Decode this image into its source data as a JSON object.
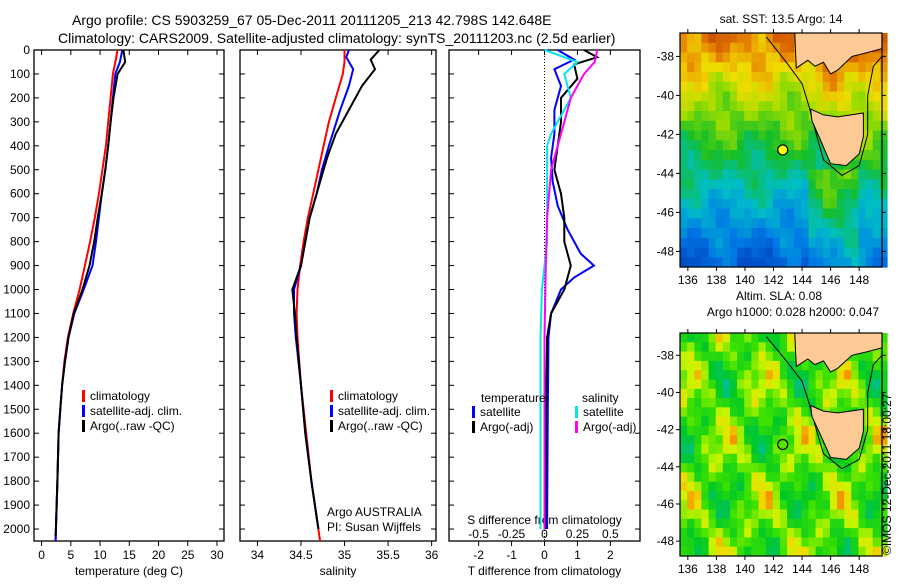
{
  "title_line1": "Argo profile: CS 5903259_67 05-Dec-2011 20111205_213 42.798S 142.648E",
  "title_line2": "Climatology: CARS2009. Satellite-adjusted climatology: synTS_20111203.nc (2.5d earlier)",
  "colors": {
    "climatology": "#ff0000",
    "satellite": "#0000ff",
    "argo": "#000000",
    "sal_satellite": "#00e5ee",
    "sal_argo": "#ff00ff"
  },
  "chart_data": [
    {
      "type": "line",
      "xlabel": "temperature (deg C)",
      "ylabel": "",
      "xlim": [
        -1.3,
        31.2
      ],
      "ylim": [
        2050,
        0
      ],
      "xticks": [
        0,
        5,
        10,
        15,
        20,
        25,
        30
      ],
      "yticks": [
        0,
        100,
        200,
        300,
        400,
        500,
        600,
        700,
        800,
        900,
        1000,
        1100,
        1200,
        1300,
        1400,
        1500,
        1600,
        1700,
        1800,
        1900,
        2000
      ],
      "legend": [
        "climatology",
        "satellite-adj. clim.",
        "Argo(..raw -QC)"
      ],
      "series": [
        {
          "name": "climatology",
          "color": "#ff0000",
          "points": [
            [
              0,
              13
            ],
            [
              50,
              12.6
            ],
            [
              100,
              12.2
            ],
            [
              200,
              11.8
            ],
            [
              300,
              11.4
            ],
            [
              400,
              11
            ],
            [
              500,
              10.4
            ],
            [
              600,
              9.8
            ],
            [
              700,
              9.1
            ],
            [
              800,
              8.3
            ],
            [
              900,
              7.4
            ],
            [
              1000,
              6.5
            ],
            [
              1100,
              5.4
            ],
            [
              1200,
              4.5
            ],
            [
              1300,
              3.9
            ],
            [
              1400,
              3.5
            ],
            [
              1500,
              3.2
            ],
            [
              1600,
              2.9
            ],
            [
              1800,
              2.7
            ],
            [
              2050,
              2.4
            ]
          ]
        },
        {
          "name": "satellite-adj. clim.",
          "color": "#0000ff",
          "points": [
            [
              0,
              13.8
            ],
            [
              50,
              13.4
            ],
            [
              100,
              12.6
            ],
            [
              200,
              12.2
            ],
            [
              300,
              11.8
            ],
            [
              400,
              11.4
            ],
            [
              500,
              10.9
            ],
            [
              600,
              10.3
            ],
            [
              700,
              9.8
            ],
            [
              800,
              9.3
            ],
            [
              900,
              8.7
            ],
            [
              1000,
              7.2
            ],
            [
              1100,
              5.6
            ],
            [
              1200,
              4.6
            ],
            [
              1300,
              4
            ],
            [
              1400,
              3.5
            ],
            [
              1500,
              3.2
            ],
            [
              1600,
              2.9
            ],
            [
              1800,
              2.7
            ],
            [
              2050,
              2.4
            ]
          ]
        },
        {
          "name": "Argo(..raw -QC)",
          "color": "#000000",
          "points": [
            [
              0,
              14
            ],
            [
              50,
              14.3
            ],
            [
              100,
              13
            ],
            [
              200,
              12.3
            ],
            [
              300,
              11.8
            ],
            [
              400,
              11.4
            ],
            [
              500,
              10.9
            ],
            [
              600,
              10.3
            ],
            [
              700,
              9.6
            ],
            [
              800,
              9
            ],
            [
              900,
              8.2
            ],
            [
              1000,
              7
            ],
            [
              1100,
              5.5
            ],
            [
              1200,
              4.6
            ],
            [
              1300,
              4
            ],
            [
              1400,
              3.5
            ],
            [
              1500,
              3.2
            ],
            [
              1600,
              2.9
            ],
            [
              1800,
              2.7
            ],
            [
              2030,
              2.4
            ]
          ]
        }
      ]
    },
    {
      "type": "line",
      "xlabel": "salinity",
      "ylabel": "",
      "xlim": [
        33.8,
        36.05
      ],
      "ylim": [
        2050,
        0
      ],
      "xticks": [
        34,
        34.5,
        35,
        35.5,
        36
      ],
      "legend": [
        "climatology",
        "satellite-adj. clim.",
        "Argo(..raw -QC)"
      ],
      "annotation": [
        "Argo AUSTRALIA",
        "PI: Susan Wijffels"
      ],
      "series": [
        {
          "name": "climatology",
          "color": "#ff0000",
          "points": [
            [
              0,
              35
            ],
            [
              50,
              35
            ],
            [
              100,
              34.98
            ],
            [
              200,
              34.9
            ],
            [
              300,
              34.82
            ],
            [
              400,
              34.76
            ],
            [
              500,
              34.7
            ],
            [
              600,
              34.64
            ],
            [
              700,
              34.58
            ],
            [
              800,
              34.53
            ],
            [
              900,
              34.49
            ],
            [
              1000,
              34.46
            ],
            [
              1100,
              34.45
            ],
            [
              1200,
              34.46
            ],
            [
              1400,
              34.5
            ],
            [
              1600,
              34.56
            ],
            [
              1800,
              34.62
            ],
            [
              2050,
              34.72
            ]
          ]
        },
        {
          "name": "satellite-adj. clim.",
          "color": "#0000ff",
          "points": [
            [
              0,
              35.05
            ],
            [
              30,
              35.02
            ],
            [
              80,
              35.1
            ],
            [
              150,
              35.05
            ],
            [
              250,
              34.95
            ],
            [
              400,
              34.82
            ],
            [
              500,
              34.74
            ],
            [
              600,
              34.68
            ],
            [
              700,
              34.6
            ],
            [
              800,
              34.55
            ],
            [
              900,
              34.5
            ],
            [
              1000,
              34.42
            ],
            [
              1100,
              34.42
            ],
            [
              1200,
              34.44
            ],
            [
              1400,
              34.5
            ],
            [
              1600,
              34.55
            ],
            [
              1800,
              34.62
            ],
            [
              2000,
              34.7
            ]
          ]
        },
        {
          "name": "Argo(..raw -QC)",
          "color": "#000000",
          "points": [
            [
              0,
              35.4
            ],
            [
              40,
              35.3
            ],
            [
              80,
              35.35
            ],
            [
              150,
              35.2
            ],
            [
              250,
              35.05
            ],
            [
              350,
              34.9
            ],
            [
              450,
              34.8
            ],
            [
              550,
              34.72
            ],
            [
              700,
              34.6
            ],
            [
              800,
              34.55
            ],
            [
              900,
              34.5
            ],
            [
              1000,
              34.4
            ],
            [
              1100,
              34.43
            ],
            [
              1200,
              34.45
            ],
            [
              1400,
              34.5
            ],
            [
              1600,
              34.55
            ],
            [
              1800,
              34.62
            ],
            [
              2000,
              34.7
            ]
          ]
        }
      ]
    },
    {
      "type": "line",
      "xlabel": "T difference from climatology",
      "xlabel2": "S difference from climatology",
      "xlim": [
        -2.9,
        2.9
      ],
      "ylim": [
        2050,
        0
      ],
      "xticks": [
        -2,
        -1,
        0,
        1,
        2
      ],
      "xticks2": [
        "-0.5",
        "-0.25",
        "0",
        "0.25",
        "0.5"
      ],
      "legend_t_header": "temperature",
      "legend_s_header": "salinity",
      "legend": [
        "satellite",
        "Argo(-adj)",
        "satellite",
        "Argo(-adj)"
      ],
      "series": [
        {
          "name": "T satellite",
          "color": "#0000ff",
          "axis": "T",
          "points": [
            [
              0,
              0.4
            ],
            [
              40,
              0.9
            ],
            [
              80,
              0.3
            ],
            [
              150,
              0.5
            ],
            [
              250,
              0.3
            ],
            [
              350,
              0.3
            ],
            [
              450,
              0.2
            ],
            [
              550,
              0.25
            ],
            [
              650,
              0.4
            ],
            [
              750,
              0.7
            ],
            [
              850,
              1.1
            ],
            [
              900,
              1.5
            ],
            [
              950,
              0.9
            ],
            [
              1000,
              0.5
            ],
            [
              1100,
              0.2
            ],
            [
              1200,
              0.12
            ],
            [
              1500,
              0.1
            ],
            [
              2000,
              0.08
            ]
          ]
        },
        {
          "name": "T Argo(-adj)",
          "color": "#000000",
          "axis": "T",
          "points": [
            [
              0,
              1.2
            ],
            [
              30,
              1.6
            ],
            [
              60,
              0.9
            ],
            [
              120,
              1
            ],
            [
              200,
              0.5
            ],
            [
              300,
              0.5
            ],
            [
              400,
              0.4
            ],
            [
              500,
              0.3
            ],
            [
              600,
              0.5
            ],
            [
              700,
              0.6
            ],
            [
              800,
              0.6
            ],
            [
              900,
              0.8
            ],
            [
              1000,
              0.6
            ],
            [
              1100,
              0.2
            ],
            [
              1200,
              0.08
            ],
            [
              1500,
              0.05
            ],
            [
              2000,
              0.03
            ]
          ]
        },
        {
          "name": "S satellite",
          "color": "#00e5ee",
          "axis": "S",
          "points": [
            [
              0,
              0
            ],
            [
              50,
              0.25
            ],
            [
              100,
              0.15
            ],
            [
              200,
              0.2
            ],
            [
              300,
              0.1
            ],
            [
              350,
              0.05
            ],
            [
              400,
              0.02
            ],
            [
              600,
              0.02
            ],
            [
              800,
              0.02
            ],
            [
              1000,
              -0.02
            ],
            [
              1200,
              -0.03
            ],
            [
              1600,
              -0.03
            ],
            [
              2000,
              -0.03
            ]
          ]
        },
        {
          "name": "S Argo(-adj)",
          "color": "#ff00ff",
          "axis": "S",
          "points": [
            [
              0,
              0.4
            ],
            [
              50,
              0.38
            ],
            [
              100,
              0.3
            ],
            [
              200,
              0.2
            ],
            [
              300,
              0.15
            ],
            [
              400,
              0.1
            ],
            [
              500,
              0.05
            ],
            [
              700,
              0.02
            ],
            [
              900,
              0.01
            ],
            [
              1200,
              0
            ],
            [
              1600,
              0
            ],
            [
              2000,
              0
            ]
          ]
        }
      ]
    }
  ],
  "maps": [
    {
      "title": "sat. SST: 13.5  Argo: 14",
      "title2": "",
      "variable": "SST",
      "lon_ticks": [
        "136",
        "138",
        "140",
        "142",
        "144",
        "146",
        "148"
      ],
      "lat_ticks": [
        "-38",
        "-40",
        "-42",
        "-44",
        "-46",
        "-48"
      ],
      "argo_lon": 142.648,
      "argo_lat": -42.798
    },
    {
      "title": "Altim. SLA: 0.08",
      "title2": "Argo h1000: 0.028 h2000: 0.047",
      "variable": "SLA",
      "lon_ticks": [
        "136",
        "138",
        "140",
        "142",
        "144",
        "146",
        "148"
      ],
      "lat_ticks": [
        "-38",
        "-40",
        "-42",
        "-44",
        "-46",
        "-48"
      ],
      "argo_lon": 142.648,
      "argo_lat": -42.798
    }
  ],
  "credit": "©IMOS 12-Dec-2011 18:00:27"
}
